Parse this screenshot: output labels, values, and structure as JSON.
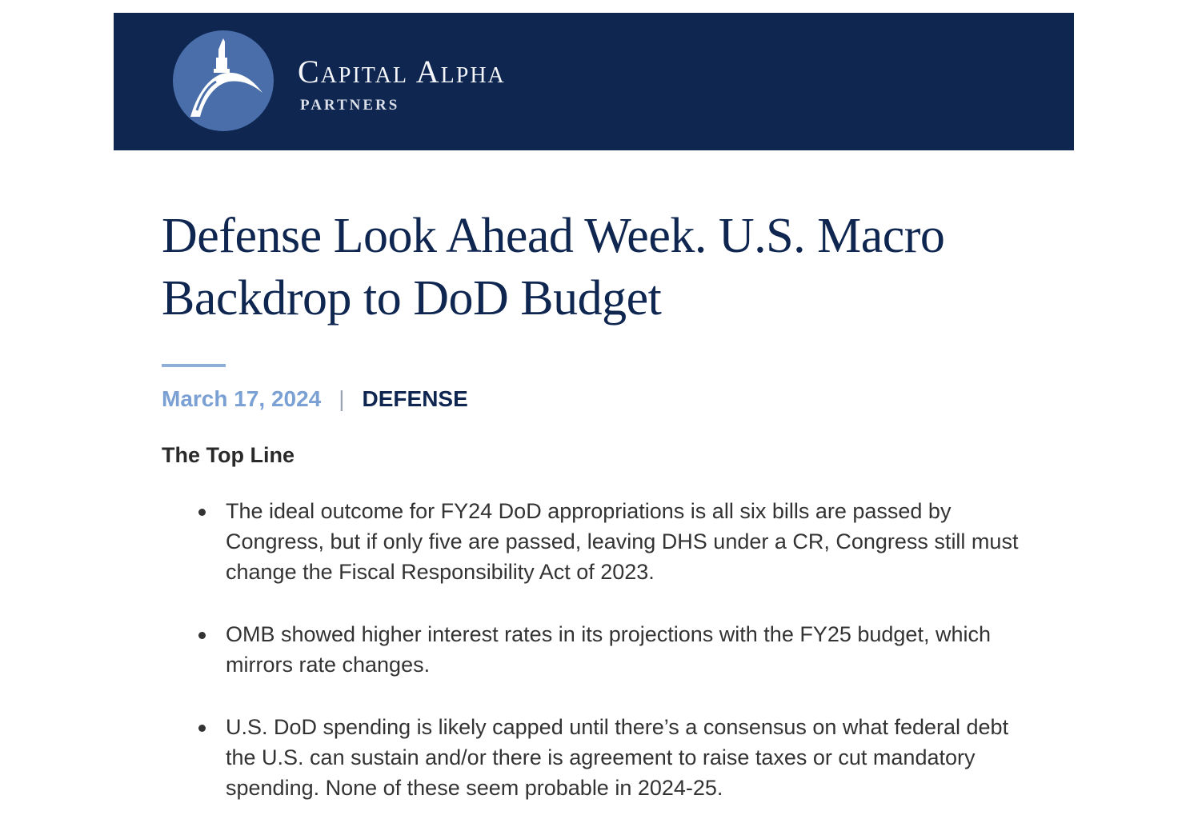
{
  "header": {
    "brand_name": "Capital Alpha",
    "brand_sub": "PARTNERS",
    "logo_icon": "capitol-dome-icon",
    "colors": {
      "banner": "#0e2650",
      "logo_circle": "#4a6ea9"
    }
  },
  "article": {
    "title": "Defense Look Ahead Week. U.S. Macro Backdrop to DoD Budget",
    "date": "March 17, 2024",
    "separator": "|",
    "category": "DEFENSE",
    "section_heading": "The Top Line",
    "bullets": [
      "The ideal outcome for FY24 DoD appropriations is all six bills are passed by Congress, but if only five are passed, leaving DHS under a CR, Congress still must change the Fiscal Responsibility Act of 2023.",
      "OMB showed higher interest rates in its projections with the FY25 budget, which mirrors rate changes.",
      "U.S. DoD spending is likely capped until there’s a consensus on what federal debt the U.S. can sustain and/or there is agreement to raise taxes or cut mandatory spending. None of these seem probable in 2024-25."
    ],
    "colors": {
      "title": "#0e2650",
      "date": "#7aa0d4",
      "rule": "#8eafd8"
    }
  }
}
